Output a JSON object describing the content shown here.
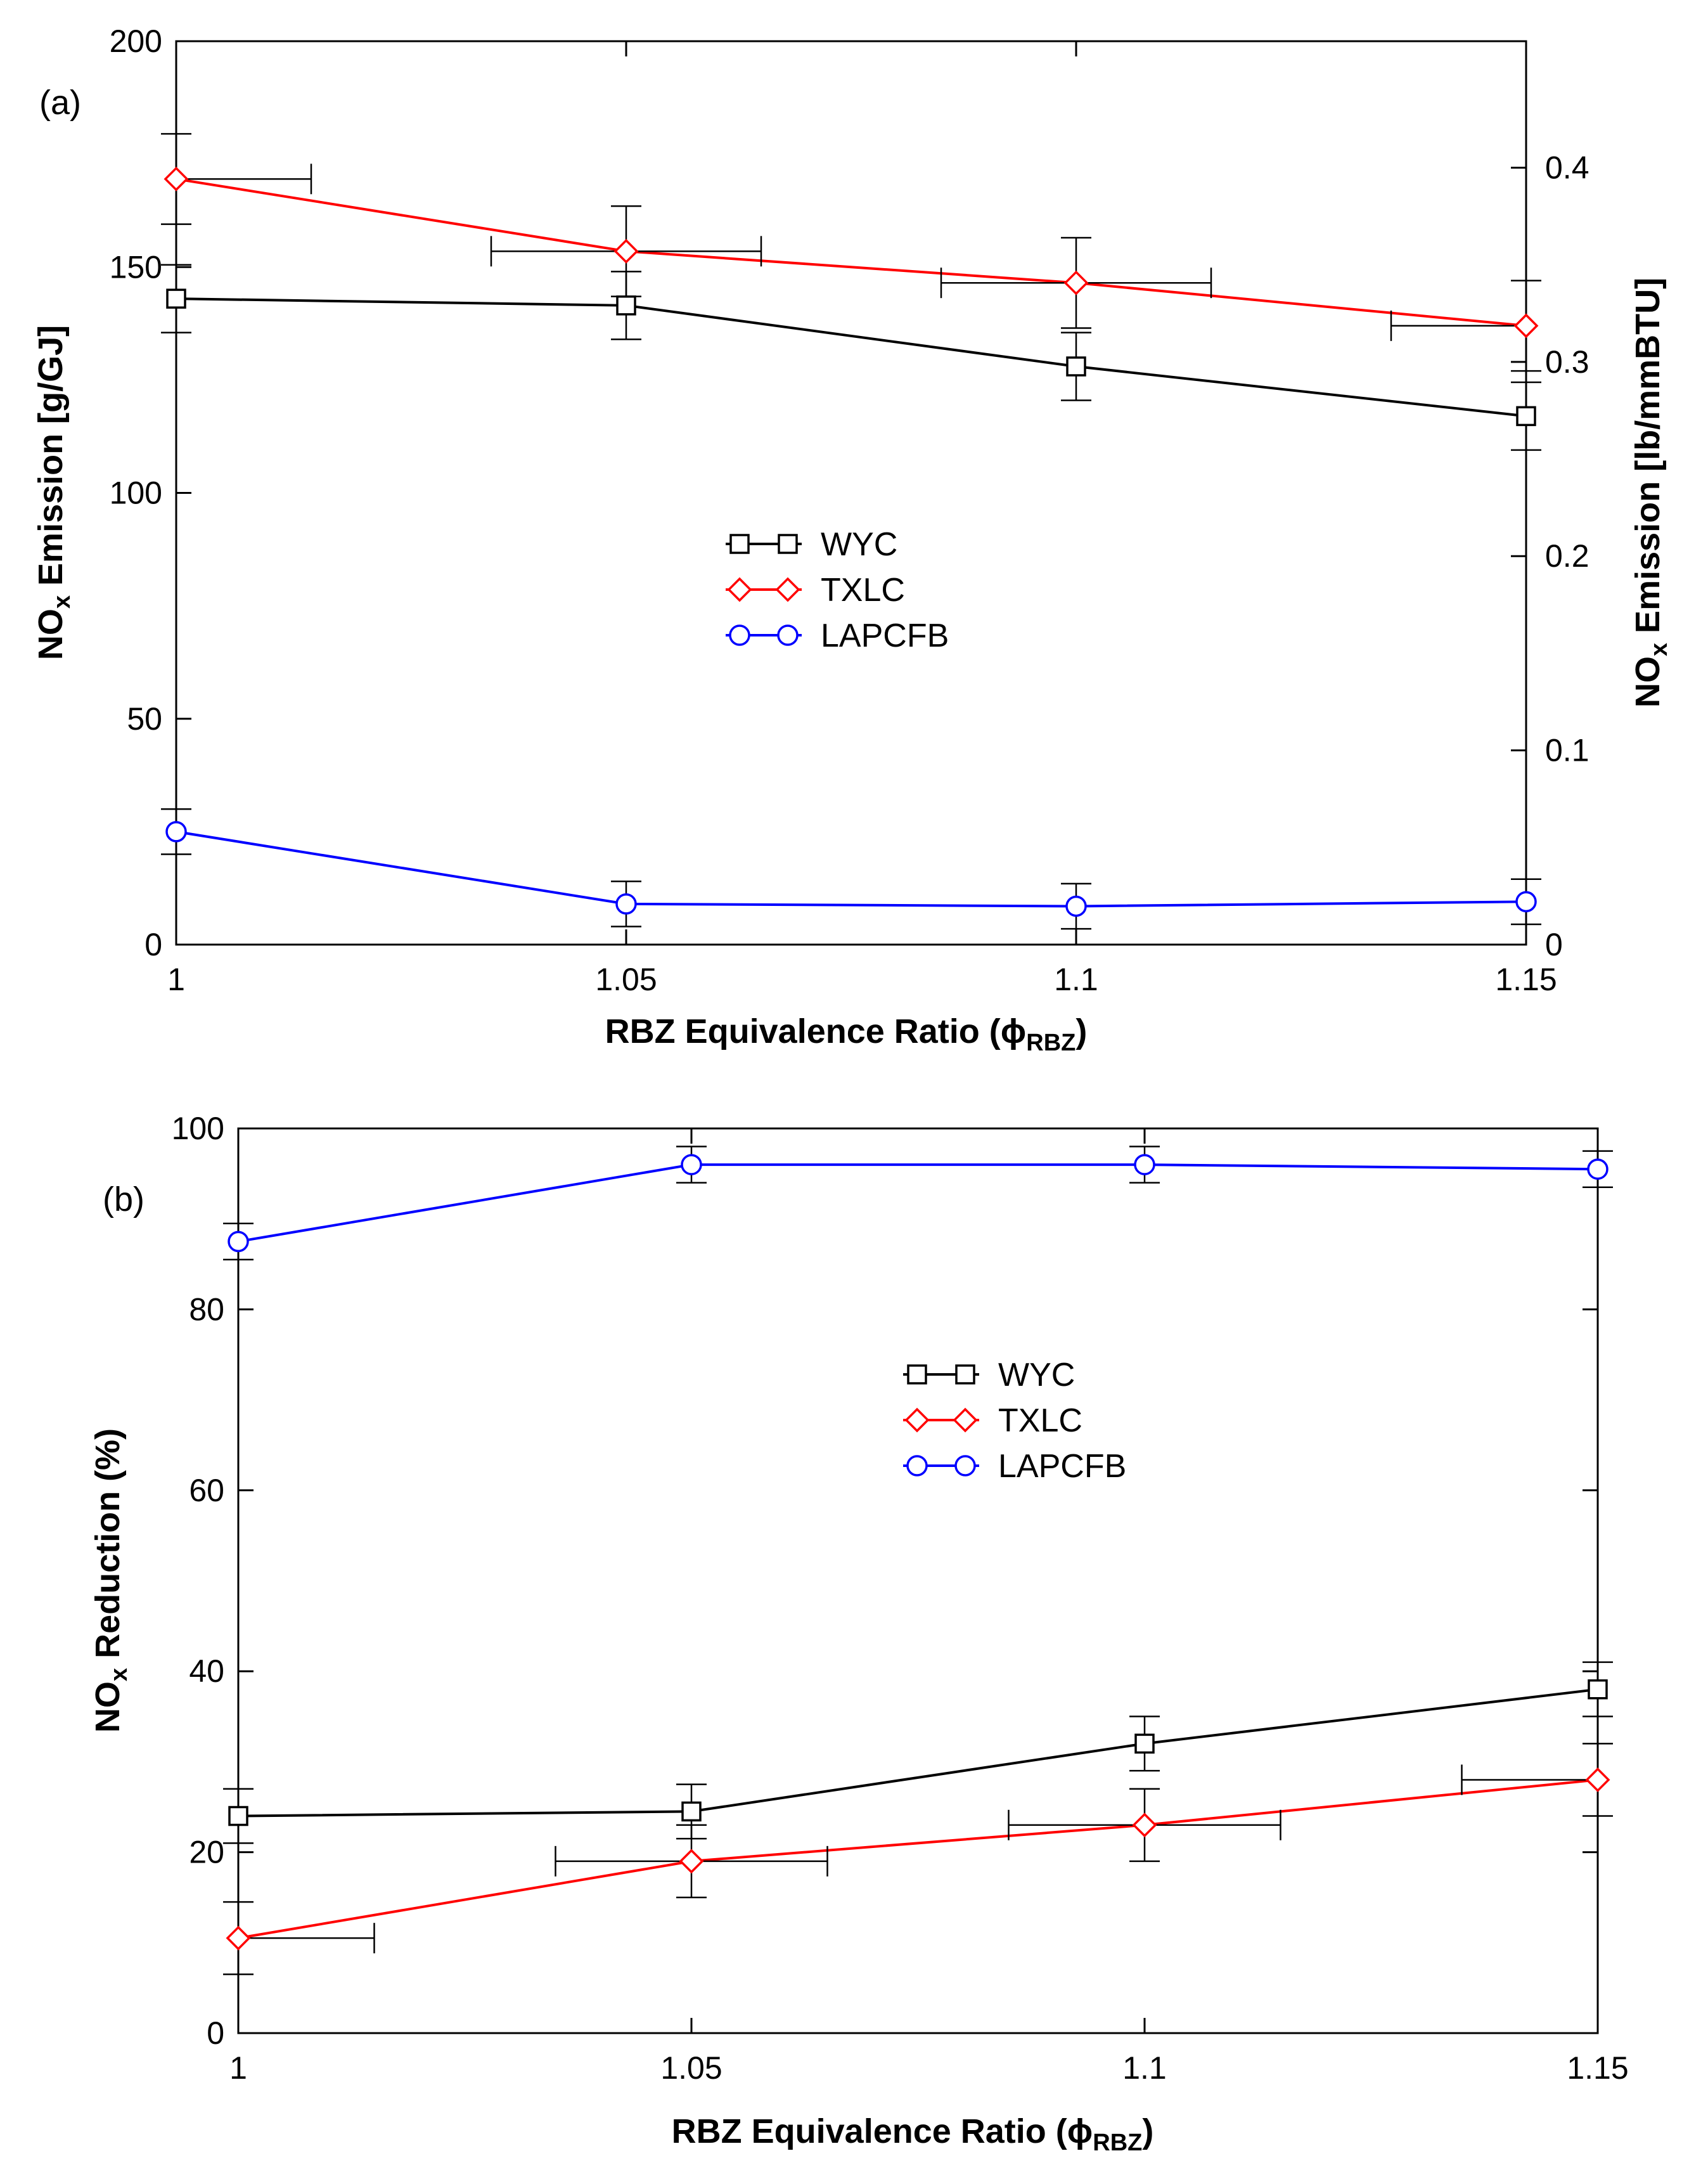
{
  "colors": {
    "WYC": "#000000",
    "TXLC": "#ff0000",
    "LAPCFB": "#0000ff"
  },
  "chart_data": [
    {
      "type": "line",
      "panel_label": "(a)",
      "xlabel": "RBZ Equivalence Ratio (ϕ",
      "xlabel_sub": "RBZ",
      "xlabel_end": ")",
      "ylabel": "NO",
      "ylabel_sub": "x",
      "ylabel_rest": " Emission [g/GJ]",
      "y2label": "NO",
      "y2label_sub": "x",
      "y2label_rest": " Emission [lb/mmBTU]",
      "x": [
        1,
        1.05,
        1.1,
        1.15
      ],
      "xlim": [
        1,
        1.15
      ],
      "ylim": [
        0,
        200
      ],
      "y2lim": [
        0,
        0.4651
      ],
      "x_ticks": [
        1,
        1.05,
        1.1,
        1.15
      ],
      "x_tick_labels": [
        "1",
        "1.05",
        "1.1",
        "1.15"
      ],
      "y_ticks": [
        0,
        50,
        100,
        150,
        200
      ],
      "y_tick_labels": [
        "0",
        "50",
        "100",
        "150",
        "200"
      ],
      "y2_ticks": [
        0,
        0.1,
        0.2,
        0.3,
        0.4
      ],
      "y2_tick_labels": [
        "0",
        "0.1",
        "0.2",
        "0.3",
        "0.4"
      ],
      "legend": [
        "WYC",
        "TXLC",
        "LAPCFB"
      ],
      "series": [
        {
          "name": "WYC",
          "marker": "square",
          "values": [
            143,
            141.5,
            128,
            117
          ],
          "y_err": [
            7.5,
            7.5,
            7.5,
            7.5
          ],
          "x_err": [
            0,
            0,
            0,
            0
          ]
        },
        {
          "name": "TXLC",
          "marker": "diamond",
          "values": [
            169.5,
            153.5,
            146.5,
            137
          ],
          "y_err": [
            10,
            10,
            10,
            10
          ],
          "x_err": [
            0.015,
            0.015,
            0.015,
            0.015
          ]
        },
        {
          "name": "LAPCFB",
          "marker": "circle",
          "values": [
            25,
            9,
            8.5,
            9.5
          ],
          "y_err": [
            5,
            5,
            5,
            5
          ],
          "x_err": [
            0,
            0,
            0,
            0
          ]
        }
      ]
    },
    {
      "type": "line",
      "panel_label": "(b)",
      "xlabel": "RBZ Equivalence Ratio (ϕ",
      "xlabel_sub": "RBZ",
      "xlabel_end": ")",
      "ylabel": "NO",
      "ylabel_sub": "x",
      "ylabel_rest": " Reduction (%)",
      "x": [
        1,
        1.05,
        1.1,
        1.15
      ],
      "xlim": [
        1,
        1.15
      ],
      "ylim": [
        0,
        100
      ],
      "x_ticks": [
        1,
        1.05,
        1.1,
        1.15
      ],
      "x_tick_labels": [
        "1",
        "1.05",
        "1.1",
        "1.15"
      ],
      "y_ticks": [
        0,
        20,
        40,
        60,
        80,
        100
      ],
      "y_tick_labels": [
        "0",
        "20",
        "40",
        "60",
        "80",
        "100"
      ],
      "legend": [
        "WYC",
        "TXLC",
        "LAPCFB"
      ],
      "series": [
        {
          "name": "WYC",
          "marker": "square",
          "values": [
            24,
            24.5,
            32,
            38
          ],
          "y_err": [
            3,
            3,
            3,
            3
          ],
          "x_err": [
            0,
            0,
            0,
            0
          ]
        },
        {
          "name": "TXLC",
          "marker": "diamond",
          "values": [
            10.5,
            19,
            23,
            28
          ],
          "y_err": [
            4,
            4,
            4,
            4
          ],
          "x_err": [
            0.015,
            0.015,
            0.015,
            0.015
          ]
        },
        {
          "name": "LAPCFB",
          "marker": "circle",
          "values": [
            87.5,
            96,
            96,
            95.5
          ],
          "y_err": [
            2,
            2,
            2,
            2
          ],
          "x_err": [
            0,
            0,
            0,
            0
          ]
        }
      ]
    }
  ]
}
